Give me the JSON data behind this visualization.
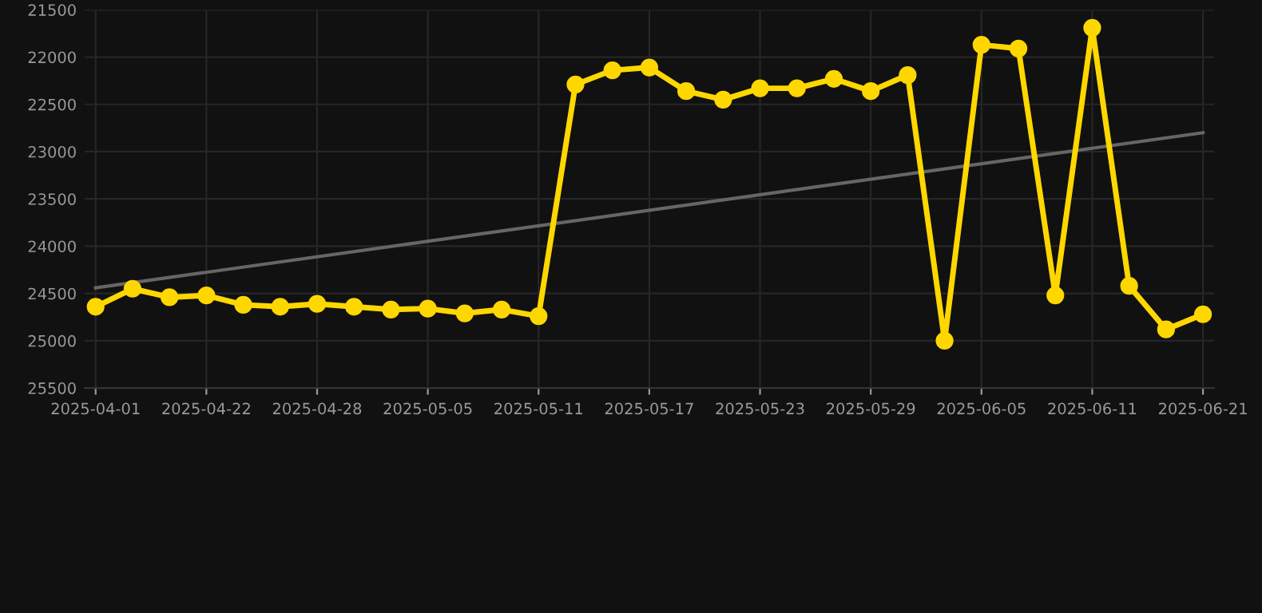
{
  "chart_data": {
    "type": "line",
    "categories": [
      "2025-04-01",
      null,
      null,
      "2025-04-22",
      null,
      null,
      "2025-04-28",
      null,
      null,
      "2025-05-05",
      null,
      null,
      "2025-05-11",
      null,
      null,
      "2025-05-17",
      null,
      null,
      "2025-05-23",
      null,
      null,
      "2025-05-29",
      null,
      null,
      "2025-06-05",
      null,
      null,
      "2025-06-11",
      null,
      null,
      "2025-06-21"
    ],
    "series": [
      {
        "color": "#ffd700",
        "marker": "circle",
        "values": [
          24640,
          24450,
          24540,
          24520,
          24620,
          24640,
          24610,
          24640,
          24670,
          24660,
          24710,
          24670,
          24740,
          22290,
          22140,
          22110,
          22360,
          22450,
          22330,
          22330,
          22230,
          22360,
          22190,
          25000,
          21870,
          21910,
          24520,
          21690,
          24420,
          24880,
          24720
        ]
      },
      {
        "color": "#666666",
        "marker": "none",
        "values": [
          24440,
          null,
          null,
          null,
          null,
          null,
          null,
          null,
          null,
          null,
          null,
          null,
          null,
          null,
          null,
          null,
          null,
          null,
          null,
          null,
          null,
          null,
          null,
          null,
          null,
          null,
          null,
          null,
          null,
          null,
          22800
        ]
      }
    ],
    "ylim": [
      25500,
      21500
    ],
    "yticks": [
      21500,
      22000,
      22500,
      23000,
      23500,
      24000,
      24500,
      25000,
      25500
    ],
    "grid": true
  }
}
